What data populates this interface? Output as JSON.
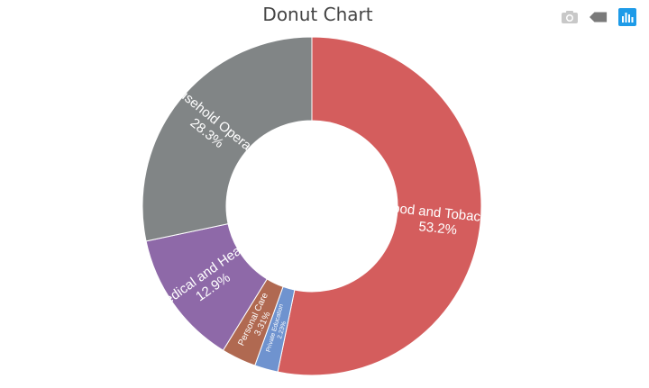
{
  "chart_data": {
    "type": "pie",
    "subtype": "donut",
    "title": "Donut Chart",
    "slices": [
      {
        "label": "Food and Tobacco",
        "value": 53.2,
        "percent_text": "53.2%",
        "color": "#d45d5d"
      },
      {
        "label": "Private Education",
        "value": 2.23,
        "percent_text": "2.23%",
        "color": "#6f93cf"
      },
      {
        "label": "Personal Care",
        "value": 3.31,
        "percent_text": "3.31%",
        "color": "#b06951"
      },
      {
        "label": "Medical and Health",
        "value": 12.9,
        "percent_text": "12.9%",
        "color": "#8e69a8"
      },
      {
        "label": "Household Operation",
        "value": 28.3,
        "percent_text": "28.3%",
        "color": "#818586"
      }
    ],
    "start_angle": 0,
    "direction": "clockwise",
    "legend": "none"
  },
  "toolbar": {
    "items": [
      {
        "icon": "camera-icon",
        "tooltip": "",
        "color": "#c8c8c8"
      },
      {
        "icon": "eraser-icon",
        "tooltip": "",
        "color": "#7a7a7a"
      },
      {
        "icon": "bar-chart-icon",
        "tooltip": "",
        "color": "#1e9be8"
      }
    ]
  }
}
